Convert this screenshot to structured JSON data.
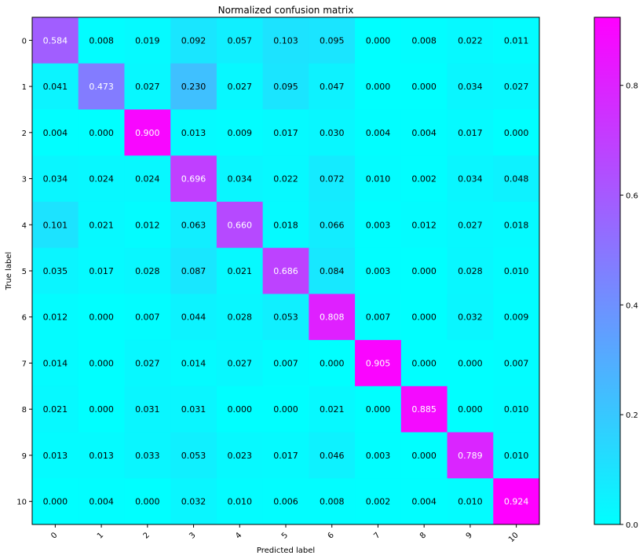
{
  "chart_data": {
    "type": "heatmap",
    "title": "Normalized confusion matrix",
    "xlabel": "Predicted label",
    "ylabel": "True label",
    "x_categories": [
      "0",
      "1",
      "2",
      "3",
      "4",
      "5",
      "6",
      "7",
      "8",
      "9",
      "10"
    ],
    "y_categories": [
      "0",
      "1",
      "2",
      "3",
      "4",
      "5",
      "6",
      "7",
      "8",
      "9",
      "10"
    ],
    "values": [
      [
        0.584,
        0.008,
        0.019,
        0.092,
        0.057,
        0.103,
        0.095,
        0.0,
        0.008,
        0.022,
        0.011
      ],
      [
        0.041,
        0.473,
        0.027,
        0.23,
        0.027,
        0.095,
        0.047,
        0.0,
        0.0,
        0.034,
        0.027
      ],
      [
        0.004,
        0.0,
        0.9,
        0.013,
        0.009,
        0.017,
        0.03,
        0.004,
        0.004,
        0.017,
        0.0
      ],
      [
        0.034,
        0.024,
        0.024,
        0.696,
        0.034,
        0.022,
        0.072,
        0.01,
        0.002,
        0.034,
        0.048
      ],
      [
        0.101,
        0.021,
        0.012,
        0.063,
        0.66,
        0.018,
        0.066,
        0.003,
        0.012,
        0.027,
        0.018
      ],
      [
        0.035,
        0.017,
        0.028,
        0.087,
        0.021,
        0.686,
        0.084,
        0.003,
        0.0,
        0.028,
        0.01
      ],
      [
        0.012,
        0.0,
        0.007,
        0.044,
        0.028,
        0.053,
        0.808,
        0.007,
        0.0,
        0.032,
        0.009
      ],
      [
        0.014,
        0.0,
        0.027,
        0.014,
        0.027,
        0.007,
        0.0,
        0.905,
        0.0,
        0.0,
        0.007
      ],
      [
        0.021,
        0.0,
        0.031,
        0.031,
        0.0,
        0.0,
        0.021,
        0.0,
        0.885,
        0.0,
        0.01
      ],
      [
        0.013,
        0.013,
        0.033,
        0.053,
        0.023,
        0.017,
        0.046,
        0.003,
        0.0,
        0.789,
        0.01
      ],
      [
        0.0,
        0.004,
        0.0,
        0.032,
        0.01,
        0.006,
        0.008,
        0.002,
        0.004,
        0.01,
        0.924
      ]
    ],
    "colormap": "cool",
    "colormap_low": "#00ffff",
    "colormap_high": "#ff00ff",
    "color_range": [
      0,
      0.924
    ],
    "colorbar_ticks": [
      "0.0",
      "0.2",
      "0.4",
      "0.6",
      "0.8"
    ],
    "colorbar_tick_values": [
      0.0,
      0.2,
      0.4,
      0.6,
      0.8
    ],
    "x_tick_rotation": "45°",
    "grid": false
  }
}
